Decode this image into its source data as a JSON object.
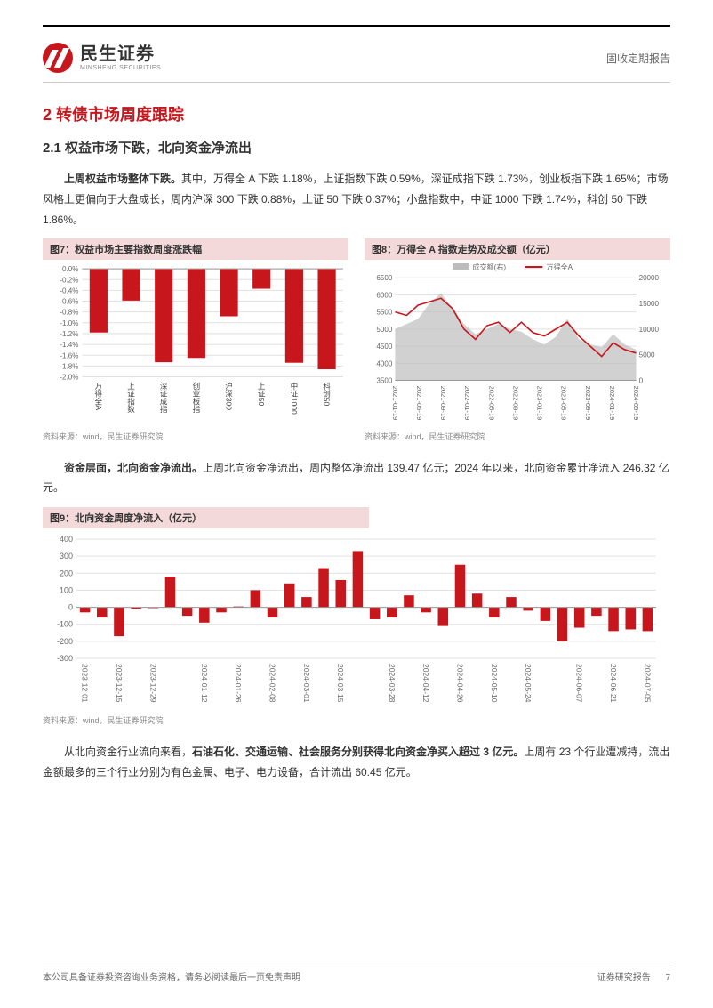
{
  "header": {
    "logo_cn": "民生证券",
    "logo_en": "MINSHENG SECURITIES",
    "doc_type": "固收定期报告"
  },
  "section": {
    "h2": "2 转债市场周度跟踪",
    "h3": "2.1 权益市场下跌，北向资金净流出"
  },
  "para1_lead": "上周权益市场整体下跌。",
  "para1_rest": "其中，万得全 A 下跌 1.18%，上证指数下跌 0.59%，深证成指下跌 1.73%，创业板指下跌 1.65%；市场风格上更偏向于大盘成长，周内沪深 300 下跌 0.88%，上证 50 下跌 0.37%；小盘指数中，中证 1000 下跌 1.74%，科创 50 下跌 1.86%。",
  "para2_lead": "资金层面，北向资金净流出。",
  "para2_rest": "上周北向资金净流出，周内整体净流出 139.47 亿元；2024 年以来，北向资金累计净流入 246.32 亿元。",
  "para3_a": "从北向资金行业流向来看，",
  "para3_bold": "石油石化、交通运输、社会服务分别获得北向资金净买入超过 3 亿元。",
  "para3_b": "上周有 23 个行业遭减持，流出金额最多的三个行业分别为有色金属、电子、电力设备，合计流出 60.45 亿元。",
  "fig7": {
    "title": "图7：权益市场主要指数周度涨跌幅",
    "source": "资料来源：wind，民生证券研究院",
    "type": "bar",
    "categories": [
      "万得全A",
      "上证指数",
      "深证成指",
      "创业板指",
      "沪深300",
      "上证50",
      "中证1000",
      "科创50"
    ],
    "values": [
      -1.18,
      -0.59,
      -1.73,
      -1.65,
      -0.88,
      -0.37,
      -1.74,
      -1.86
    ],
    "bar_color": "#c8161d",
    "ylim": [
      -2.0,
      0.0
    ],
    "ytick_step": 0.2,
    "yticks": [
      "0.0%",
      "-0.2%",
      "-0.4%",
      "-0.6%",
      "-0.8%",
      "-1.0%",
      "-1.2%",
      "-1.4%",
      "-1.6%",
      "-1.8%",
      "-2.0%"
    ],
    "grid_color": "#e0e0e0",
    "background_color": "#ffffff",
    "label_fontsize": 8
  },
  "fig8": {
    "title": "图8：万得全 A 指数走势及成交额（亿元）",
    "source": "资料来源：wind，民生证券研究院",
    "type": "line_area",
    "legend": [
      {
        "label": "成交额(右)",
        "color": "#bdbdbd",
        "type": "area"
      },
      {
        "label": "万得全A",
        "color": "#c8161d",
        "type": "line"
      }
    ],
    "x_labels": [
      "2021-01-19",
      "2021-05-19",
      "2021-09-19",
      "2022-01-19",
      "2022-05-19",
      "2022-09-19",
      "2023-01-19",
      "2023-05-19",
      "2023-09-19",
      "2024-01-19",
      "2024-05-19"
    ],
    "y_left": {
      "min": 3500,
      "max": 6500,
      "ticks": [
        3500,
        4000,
        4500,
        5000,
        5500,
        6000,
        6500
      ]
    },
    "y_right": {
      "min": 0,
      "max": 20000,
      "ticks": [
        0,
        5000,
        10000,
        15000,
        20000
      ]
    },
    "line_data": [
      5500,
      5400,
      5700,
      5800,
      5900,
      5600,
      5000,
      4700,
      5100,
      5200,
      4900,
      5200,
      4900,
      4800,
      5000,
      5200,
      4800,
      4500,
      4200,
      4600,
      4400,
      4300
    ],
    "area_data": [
      10000,
      11000,
      12000,
      15000,
      17000,
      14000,
      11000,
      9000,
      10000,
      11000,
      10000,
      9500,
      8000,
      7000,
      8500,
      12000,
      8000,
      7000,
      6500,
      9000,
      7000,
      6000
    ],
    "grid_color": "#e0e0e0",
    "background_color": "#ffffff"
  },
  "fig9": {
    "title": "图9：北向资金周度净流入（亿元）",
    "source": "资料来源：wind，民生证券研究院",
    "type": "bar",
    "categories": [
      "2023-12-01",
      "2023-12-15",
      "2023-12-29",
      "2024-01-12",
      "2024-01-26",
      "2024-02-08",
      "2024-03-01",
      "2024-03-15",
      "2024-03-28",
      "2024-04-12",
      "2024-04-26",
      "2024-05-10",
      "2024-05-24",
      "2024-06-07",
      "2024-06-21",
      "2024-07-05"
    ],
    "values_all": [
      -30,
      -60,
      -170,
      -10,
      -5,
      180,
      -50,
      -90,
      -30,
      5,
      100,
      -60,
      140,
      60,
      230,
      160,
      330,
      -70,
      -60,
      70,
      -30,
      -110,
      250,
      80,
      -60,
      60,
      -20,
      -80,
      -200,
      -120,
      -50,
      -140,
      -130,
      -140
    ],
    "bar_color": "#c8161d",
    "ylim": [
      -300,
      400
    ],
    "ytick_step": 100,
    "yticks": [
      "400",
      "300",
      "200",
      "100",
      "0",
      "-100",
      "-200",
      "-300"
    ],
    "grid_color": "#e0e0e0",
    "background_color": "#ffffff"
  },
  "footer": {
    "left": "本公司具备证券投资咨询业务资格，请务必阅读最后一页免责声明",
    "right_a": "证券研究报告",
    "right_b": "7"
  }
}
